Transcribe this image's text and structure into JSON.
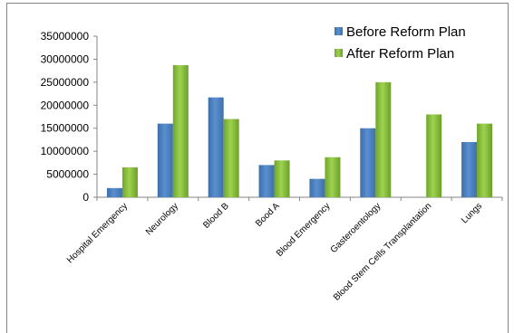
{
  "chart_data": {
    "type": "bar",
    "categories": [
      "Hospital Emergency",
      "Neurology",
      "Blood B",
      "Bood A",
      "Blood Emergency",
      "Gasteroentology",
      "Blood Stem Cells Transplantation",
      "Lungs"
    ],
    "series": [
      {
        "name": "Before Reform Plan",
        "values": [
          2000000,
          16000000,
          21700000,
          7000000,
          4000000,
          15000000,
          0,
          12000000
        ],
        "color": "#4f81bd"
      },
      {
        "name": "After Reform Plan",
        "values": [
          6500000,
          28700000,
          17000000,
          8000000,
          8700000,
          25000000,
          18000000,
          16000000
        ],
        "color": "#8cc63e"
      }
    ],
    "yticks": [
      "0",
      "5000000",
      "10000000",
      "15000000",
      "20000000",
      "25000000",
      "30000000",
      "35000000"
    ],
    "ylim": [
      0,
      35000000
    ],
    "grid": false,
    "legend_position": "top-right",
    "title": "",
    "xlabel": "",
    "ylabel": ""
  }
}
